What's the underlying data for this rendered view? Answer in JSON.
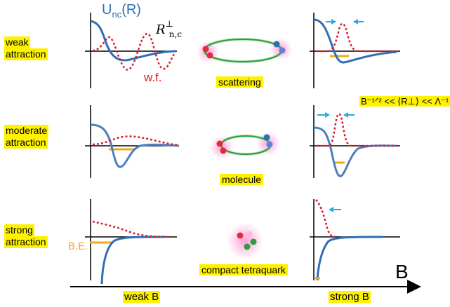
{
  "row_labels": {
    "weak": [
      "weak",
      "attraction"
    ],
    "moderate": [
      "moderate",
      "attraction"
    ],
    "strong": [
      "strong",
      "attraction"
    ]
  },
  "potential_label_main": "U",
  "potential_label_sub": "nc",
  "potential_label_arg": "(R)",
  "wavefunction_label": "w.f.",
  "radius_label_main": "R",
  "radius_label_sup": "⊥",
  "radius_label_sub": "n,c",
  "binding_energy_label": "B.E.",
  "state_labels": {
    "weak": "scattering",
    "moderate": "molecule",
    "strong": "compact tetraquark"
  },
  "scale_relation": "B⁻¹ᐟ² << ⟨R⊥⟩ << Λ⁻¹",
  "axis_label": "B",
  "axis_ends": {
    "left": "weak B",
    "right": "strong B"
  },
  "colors": {
    "potential": "#2f6fb6",
    "wavefunction": "#d81e2a",
    "binding": "#f2a81d",
    "highlight": "#fff200",
    "arrow": "#29a9e1",
    "ring": "#2e9d3b",
    "glow": "#ff8bd8"
  }
}
